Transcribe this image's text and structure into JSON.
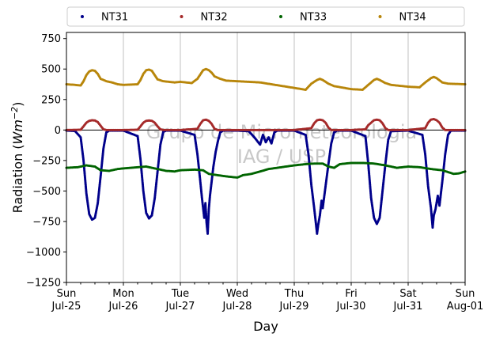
{
  "chart_data": {
    "type": "scatter",
    "xlabel": "Day",
    "ylabel_main": "Radiation (",
    "ylabel_unit": "Wm",
    "ylabel_exp": "−2",
    "ylabel_close": ")",
    "ylim": [
      -1250,
      800
    ],
    "yticks": [
      750,
      500,
      250,
      0,
      -250,
      -500,
      -750,
      -1000,
      -1250
    ],
    "ytick_labels": [
      "750",
      "500",
      "250",
      "0",
      "−250",
      "−500",
      "−750",
      "−1000",
      "−1250"
    ],
    "xlim": [
      0,
      7
    ],
    "xticks": [
      {
        "x": 0,
        "day": "Sun",
        "date": "Jul-25"
      },
      {
        "x": 1,
        "day": "Mon",
        "date": "Jul-26"
      },
      {
        "x": 2,
        "day": "Tue",
        "date": "Jul-27"
      },
      {
        "x": 3,
        "day": "Wed",
        "date": "Jul-28"
      },
      {
        "x": 4,
        "day": "Thu",
        "date": "Jul-29"
      },
      {
        "x": 5,
        "day": "Fri",
        "date": "Jul-30"
      },
      {
        "x": 6,
        "day": "Sat",
        "date": "Jul-31"
      },
      {
        "x": 7,
        "day": "Sun",
        "date": "Aug-01"
      }
    ],
    "grid": "vertical",
    "zero_line": true,
    "legend_placement": "top, outside, 4 columns",
    "watermark_line1": "Grupo de Micrometeorologia",
    "watermark_line2": "IAG / USP",
    "series": [
      {
        "name": "NT31",
        "color": "#00008b",
        "points": [
          [
            0,
            -5
          ],
          [
            0.15,
            -8
          ],
          [
            0.25,
            -60
          ],
          [
            0.3,
            -250
          ],
          [
            0.35,
            -520
          ],
          [
            0.4,
            -690
          ],
          [
            0.45,
            -735
          ],
          [
            0.5,
            -720
          ],
          [
            0.55,
            -600
          ],
          [
            0.6,
            -380
          ],
          [
            0.65,
            -150
          ],
          [
            0.7,
            -20
          ],
          [
            0.75,
            -5
          ],
          [
            1.0,
            -5
          ],
          [
            1.25,
            -50
          ],
          [
            1.3,
            -240
          ],
          [
            1.35,
            -500
          ],
          [
            1.4,
            -680
          ],
          [
            1.45,
            -725
          ],
          [
            1.5,
            -700
          ],
          [
            1.55,
            -560
          ],
          [
            1.6,
            -340
          ],
          [
            1.65,
            -120
          ],
          [
            1.7,
            -15
          ],
          [
            1.75,
            -5
          ],
          [
            2.0,
            -5
          ],
          [
            2.25,
            -40
          ],
          [
            2.3,
            -200
          ],
          [
            2.35,
            -420
          ],
          [
            2.38,
            -560
          ],
          [
            2.4,
            -640
          ],
          [
            2.42,
            -720
          ],
          [
            2.44,
            -600
          ],
          [
            2.46,
            -760
          ],
          [
            2.48,
            -850
          ],
          [
            2.5,
            -650
          ],
          [
            2.52,
            -540
          ],
          [
            2.55,
            -420
          ],
          [
            2.58,
            -300
          ],
          [
            2.62,
            -180
          ],
          [
            2.66,
            -90
          ],
          [
            2.7,
            -20
          ],
          [
            2.75,
            -5
          ],
          [
            3.0,
            -5
          ],
          [
            3.2,
            -10
          ],
          [
            3.3,
            -60
          ],
          [
            3.4,
            -120
          ],
          [
            3.45,
            -40
          ],
          [
            3.5,
            -100
          ],
          [
            3.55,
            -60
          ],
          [
            3.6,
            -110
          ],
          [
            3.65,
            -20
          ],
          [
            3.7,
            -5
          ],
          [
            4.0,
            -5
          ],
          [
            4.2,
            -40
          ],
          [
            4.25,
            -200
          ],
          [
            4.3,
            -450
          ],
          [
            4.35,
            -640
          ],
          [
            4.4,
            -850
          ],
          [
            4.42,
            -780
          ],
          [
            4.45,
            -700
          ],
          [
            4.48,
            -580
          ],
          [
            4.5,
            -640
          ],
          [
            4.55,
            -460
          ],
          [
            4.6,
            -280
          ],
          [
            4.65,
            -110
          ],
          [
            4.7,
            -20
          ],
          [
            4.75,
            -5
          ],
          [
            5.0,
            -5
          ],
          [
            5.25,
            -50
          ],
          [
            5.3,
            -280
          ],
          [
            5.35,
            -560
          ],
          [
            5.4,
            -720
          ],
          [
            5.45,
            -770
          ],
          [
            5.5,
            -720
          ],
          [
            5.55,
            -500
          ],
          [
            5.6,
            -280
          ],
          [
            5.65,
            -80
          ],
          [
            5.7,
            -10
          ],
          [
            6.0,
            -5
          ],
          [
            6.25,
            -40
          ],
          [
            6.3,
            -200
          ],
          [
            6.35,
            -460
          ],
          [
            6.4,
            -640
          ],
          [
            6.43,
            -800
          ],
          [
            6.45,
            -700
          ],
          [
            6.48,
            -650
          ],
          [
            6.52,
            -540
          ],
          [
            6.55,
            -620
          ],
          [
            6.6,
            -420
          ],
          [
            6.65,
            -200
          ],
          [
            6.7,
            -40
          ],
          [
            6.75,
            -5
          ],
          [
            7.0,
            -5
          ]
        ]
      },
      {
        "name": "NT32",
        "color": "#a52a2a",
        "points": [
          [
            0,
            0
          ],
          [
            0.25,
            2
          ],
          [
            0.3,
            30
          ],
          [
            0.35,
            60
          ],
          [
            0.4,
            75
          ],
          [
            0.45,
            80
          ],
          [
            0.5,
            78
          ],
          [
            0.55,
            65
          ],
          [
            0.6,
            35
          ],
          [
            0.65,
            5
          ],
          [
            0.7,
            0
          ],
          [
            1.0,
            0
          ],
          [
            1.25,
            2
          ],
          [
            1.3,
            30
          ],
          [
            1.35,
            60
          ],
          [
            1.4,
            75
          ],
          [
            1.45,
            78
          ],
          [
            1.5,
            75
          ],
          [
            1.55,
            60
          ],
          [
            1.6,
            30
          ],
          [
            1.65,
            5
          ],
          [
            1.7,
            0
          ],
          [
            2.0,
            0
          ],
          [
            2.3,
            10
          ],
          [
            2.35,
            50
          ],
          [
            2.4,
            80
          ],
          [
            2.45,
            85
          ],
          [
            2.5,
            75
          ],
          [
            2.55,
            50
          ],
          [
            2.6,
            10
          ],
          [
            2.65,
            0
          ],
          [
            3.0,
            0
          ],
          [
            4.0,
            0
          ],
          [
            4.3,
            15
          ],
          [
            4.35,
            55
          ],
          [
            4.4,
            80
          ],
          [
            4.45,
            85
          ],
          [
            4.5,
            80
          ],
          [
            4.55,
            60
          ],
          [
            4.6,
            20
          ],
          [
            4.65,
            0
          ],
          [
            5.0,
            0
          ],
          [
            5.25,
            5
          ],
          [
            5.3,
            40
          ],
          [
            5.4,
            80
          ],
          [
            5.45,
            85
          ],
          [
            5.5,
            80
          ],
          [
            5.55,
            55
          ],
          [
            5.6,
            15
          ],
          [
            5.65,
            0
          ],
          [
            6.0,
            0
          ],
          [
            6.3,
            15
          ],
          [
            6.35,
            60
          ],
          [
            6.4,
            85
          ],
          [
            6.45,
            90
          ],
          [
            6.5,
            80
          ],
          [
            6.55,
            60
          ],
          [
            6.6,
            20
          ],
          [
            6.65,
            0
          ],
          [
            7.0,
            0
          ]
        ]
      },
      {
        "name": "NT33",
        "color": "#006400",
        "points": [
          [
            0,
            -310
          ],
          [
            0.2,
            -305
          ],
          [
            0.35,
            -290
          ],
          [
            0.5,
            -300
          ],
          [
            0.6,
            -330
          ],
          [
            0.75,
            -335
          ],
          [
            0.9,
            -320
          ],
          [
            1.0,
            -315
          ],
          [
            1.25,
            -305
          ],
          [
            1.4,
            -300
          ],
          [
            1.6,
            -320
          ],
          [
            1.75,
            -335
          ],
          [
            1.9,
            -340
          ],
          [
            2.0,
            -330
          ],
          [
            2.25,
            -325
          ],
          [
            2.4,
            -330
          ],
          [
            2.5,
            -360
          ],
          [
            2.65,
            -370
          ],
          [
            2.8,
            -380
          ],
          [
            3.0,
            -390
          ],
          [
            3.1,
            -370
          ],
          [
            3.25,
            -360
          ],
          [
            3.4,
            -340
          ],
          [
            3.55,
            -320
          ],
          [
            3.7,
            -310
          ],
          [
            3.85,
            -300
          ],
          [
            4.0,
            -290
          ],
          [
            4.2,
            -280
          ],
          [
            4.35,
            -275
          ],
          [
            4.5,
            -275
          ],
          [
            4.6,
            -300
          ],
          [
            4.7,
            -310
          ],
          [
            4.8,
            -280
          ],
          [
            5.0,
            -270
          ],
          [
            5.2,
            -270
          ],
          [
            5.4,
            -275
          ],
          [
            5.6,
            -290
          ],
          [
            5.8,
            -310
          ],
          [
            6.0,
            -300
          ],
          [
            6.2,
            -305
          ],
          [
            6.4,
            -320
          ],
          [
            6.6,
            -330
          ],
          [
            6.8,
            -360
          ],
          [
            6.9,
            -355
          ],
          [
            7.0,
            -340
          ]
        ]
      },
      {
        "name": "NT34",
        "color": "#b8860b",
        "points": [
          [
            0,
            375
          ],
          [
            0.15,
            370
          ],
          [
            0.25,
            365
          ],
          [
            0.3,
            400
          ],
          [
            0.35,
            450
          ],
          [
            0.4,
            480
          ],
          [
            0.45,
            490
          ],
          [
            0.5,
            485
          ],
          [
            0.55,
            460
          ],
          [
            0.6,
            420
          ],
          [
            0.7,
            400
          ],
          [
            0.8,
            390
          ],
          [
            0.9,
            375
          ],
          [
            1.0,
            370
          ],
          [
            1.25,
            375
          ],
          [
            1.3,
            410
          ],
          [
            1.35,
            460
          ],
          [
            1.4,
            490
          ],
          [
            1.45,
            495
          ],
          [
            1.5,
            485
          ],
          [
            1.55,
            450
          ],
          [
            1.6,
            415
          ],
          [
            1.7,
            400
          ],
          [
            1.8,
            395
          ],
          [
            1.9,
            390
          ],
          [
            2.0,
            395
          ],
          [
            2.2,
            385
          ],
          [
            2.3,
            420
          ],
          [
            2.4,
            490
          ],
          [
            2.45,
            500
          ],
          [
            2.5,
            490
          ],
          [
            2.55,
            470
          ],
          [
            2.6,
            440
          ],
          [
            2.7,
            420
          ],
          [
            2.8,
            405
          ],
          [
            3.0,
            400
          ],
          [
            3.2,
            395
          ],
          [
            3.4,
            390
          ],
          [
            3.6,
            375
          ],
          [
            3.8,
            360
          ],
          [
            4.0,
            345
          ],
          [
            4.2,
            330
          ],
          [
            4.3,
            380
          ],
          [
            4.4,
            410
          ],
          [
            4.45,
            420
          ],
          [
            4.5,
            410
          ],
          [
            4.6,
            380
          ],
          [
            4.7,
            360
          ],
          [
            5.0,
            335
          ],
          [
            5.2,
            330
          ],
          [
            5.3,
            370
          ],
          [
            5.4,
            410
          ],
          [
            5.45,
            420
          ],
          [
            5.5,
            410
          ],
          [
            5.6,
            385
          ],
          [
            5.7,
            370
          ],
          [
            6.0,
            355
          ],
          [
            6.2,
            350
          ],
          [
            6.3,
            390
          ],
          [
            6.4,
            425
          ],
          [
            6.45,
            435
          ],
          [
            6.5,
            425
          ],
          [
            6.6,
            390
          ],
          [
            6.7,
            380
          ],
          [
            7.0,
            375
          ]
        ]
      }
    ]
  }
}
